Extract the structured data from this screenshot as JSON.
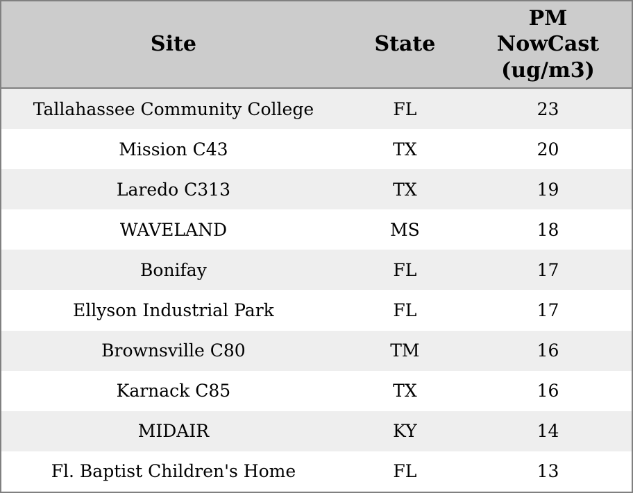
{
  "colors": {
    "header_bg": "#cccccc",
    "row_alt_bg": "#eeeeee",
    "row_bg": "#ffffff",
    "border": "#808080",
    "text": "#000000"
  },
  "table": {
    "columns": {
      "site_label": "Site",
      "state_label": "State",
      "pm_label": "PM\nNowCast\n(ug/m3)"
    },
    "rows": [
      {
        "site": "Tallahassee Community College",
        "state": "FL",
        "pm_nowcast": "23"
      },
      {
        "site": "Mission C43",
        "state": "TX",
        "pm_nowcast": "20"
      },
      {
        "site": "Laredo C313",
        "state": "TX",
        "pm_nowcast": "19"
      },
      {
        "site": "WAVELAND",
        "state": "MS",
        "pm_nowcast": "18"
      },
      {
        "site": "Bonifay",
        "state": "FL",
        "pm_nowcast": "17"
      },
      {
        "site": "Ellyson Industrial Park",
        "state": "FL",
        "pm_nowcast": "17"
      },
      {
        "site": "Brownsville C80",
        "state": "TM",
        "pm_nowcast": "16"
      },
      {
        "site": "Karnack C85",
        "state": "TX",
        "pm_nowcast": "16"
      },
      {
        "site": "MIDAIR",
        "state": "KY",
        "pm_nowcast": "14"
      },
      {
        "site": "Fl. Baptist Children's Home",
        "state": "FL",
        "pm_nowcast": "13"
      }
    ]
  }
}
